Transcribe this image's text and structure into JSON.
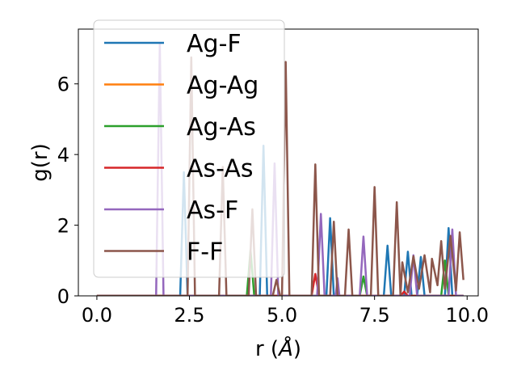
{
  "chart_data": {
    "type": "line",
    "title": "",
    "xlabel": "r (Å)",
    "xlabel_parts": {
      "prefix": "r (",
      "symbol": "Å",
      "suffix": ")"
    },
    "ylabel": "g(r)",
    "xlim": [
      -0.5,
      10.3
    ],
    "ylim": [
      0,
      7.55
    ],
    "xticks": [
      0.0,
      2.5,
      5.0,
      7.5,
      10.0
    ],
    "xtick_labels": [
      "0.0",
      "2.5",
      "5.0",
      "7.5",
      "10.0"
    ],
    "yticks": [
      0,
      2,
      4,
      6
    ],
    "ytick_labels": [
      "0",
      "2",
      "4",
      "6"
    ],
    "grid": false,
    "legend_position": "upper-left",
    "series": [
      {
        "name": "Ag-F",
        "color": "#1f77b4",
        "points": [
          [
            0,
            0
          ],
          [
            2.25,
            0
          ],
          [
            2.35,
            3.5
          ],
          [
            2.45,
            0
          ],
          [
            4.4,
            0
          ],
          [
            4.5,
            4.25
          ],
          [
            4.6,
            0
          ],
          [
            6.2,
            0
          ],
          [
            6.3,
            2.2
          ],
          [
            6.4,
            0
          ],
          [
            7.75,
            0
          ],
          [
            7.85,
            1.42
          ],
          [
            7.95,
            0
          ],
          [
            8.3,
            0
          ],
          [
            8.4,
            1.25
          ],
          [
            8.5,
            0
          ],
          [
            8.65,
            0
          ],
          [
            8.75,
            1.1
          ],
          [
            8.85,
            0
          ],
          [
            9.4,
            0
          ],
          [
            9.5,
            1.92
          ],
          [
            9.6,
            0
          ],
          [
            9.9,
            0
          ]
        ]
      },
      {
        "name": "Ag-Ag",
        "color": "#ff7f0e",
        "points": [
          [
            0,
            0
          ],
          [
            9.9,
            0
          ]
        ]
      },
      {
        "name": "Ag-As",
        "color": "#2ca02c",
        "points": [
          [
            0,
            0
          ],
          [
            4.05,
            0
          ],
          [
            4.15,
            1.3
          ],
          [
            4.25,
            0
          ],
          [
            7.1,
            0
          ],
          [
            7.2,
            0.55
          ],
          [
            7.3,
            0
          ],
          [
            9.3,
            0
          ],
          [
            9.4,
            1.0
          ],
          [
            9.5,
            0
          ],
          [
            9.9,
            0
          ]
        ]
      },
      {
        "name": "As-As",
        "color": "#d62728",
        "points": [
          [
            0,
            0
          ],
          [
            5.8,
            0
          ],
          [
            5.9,
            0.62
          ],
          [
            6.0,
            0
          ],
          [
            8.2,
            0
          ],
          [
            8.3,
            0.12
          ],
          [
            8.4,
            0
          ],
          [
            9.9,
            0
          ]
        ]
      },
      {
        "name": "As-F",
        "color": "#9467bd",
        "points": [
          [
            0,
            0
          ],
          [
            1.6,
            0
          ],
          [
            1.7,
            7.15
          ],
          [
            1.8,
            0
          ],
          [
            4.7,
            0
          ],
          [
            4.8,
            3.75
          ],
          [
            4.9,
            0
          ],
          [
            5.95,
            0
          ],
          [
            6.05,
            2.32
          ],
          [
            6.15,
            0
          ],
          [
            6.45,
            0
          ],
          [
            6.5,
            0.5
          ],
          [
            6.55,
            0
          ],
          [
            7.1,
            0
          ],
          [
            7.2,
            1.68
          ],
          [
            7.3,
            0
          ],
          [
            8.45,
            0
          ],
          [
            8.55,
            1.15
          ],
          [
            8.65,
            0
          ],
          [
            9.5,
            0
          ],
          [
            9.6,
            1.88
          ],
          [
            9.7,
            0
          ],
          [
            9.9,
            0
          ]
        ]
      },
      {
        "name": "F-F",
        "color": "#8c564b",
        "points": [
          [
            0,
            0
          ],
          [
            2.45,
            0
          ],
          [
            2.55,
            6.75
          ],
          [
            2.65,
            0
          ],
          [
            3.3,
            0
          ],
          [
            3.4,
            3.65
          ],
          [
            3.5,
            0
          ],
          [
            4.1,
            0
          ],
          [
            4.2,
            2.45
          ],
          [
            4.3,
            0
          ],
          [
            4.75,
            0
          ],
          [
            4.85,
            0.45
          ],
          [
            4.95,
            0
          ],
          [
            5.0,
            0
          ],
          [
            5.1,
            6.62
          ],
          [
            5.2,
            0
          ],
          [
            5.8,
            0
          ],
          [
            5.9,
            3.72
          ],
          [
            6.0,
            0
          ],
          [
            6.3,
            0
          ],
          [
            6.4,
            2.1
          ],
          [
            6.5,
            0
          ],
          [
            6.7,
            0
          ],
          [
            6.8,
            1.88
          ],
          [
            6.9,
            0
          ],
          [
            7.4,
            0
          ],
          [
            7.5,
            3.08
          ],
          [
            7.6,
            0
          ],
          [
            8.0,
            0
          ],
          [
            8.1,
            2.65
          ],
          [
            8.2,
            0
          ],
          [
            8.25,
            0.95
          ],
          [
            8.4,
            0.1
          ],
          [
            8.55,
            1.12
          ],
          [
            8.7,
            0.2
          ],
          [
            8.85,
            1.15
          ],
          [
            9.0,
            0.1
          ],
          [
            9.05,
            1.05
          ],
          [
            9.2,
            0.3
          ],
          [
            9.3,
            1.55
          ],
          [
            9.4,
            0.2
          ],
          [
            9.55,
            1.7
          ],
          [
            9.7,
            0.15
          ],
          [
            9.8,
            1.8
          ],
          [
            9.9,
            0.45
          ]
        ]
      }
    ]
  }
}
